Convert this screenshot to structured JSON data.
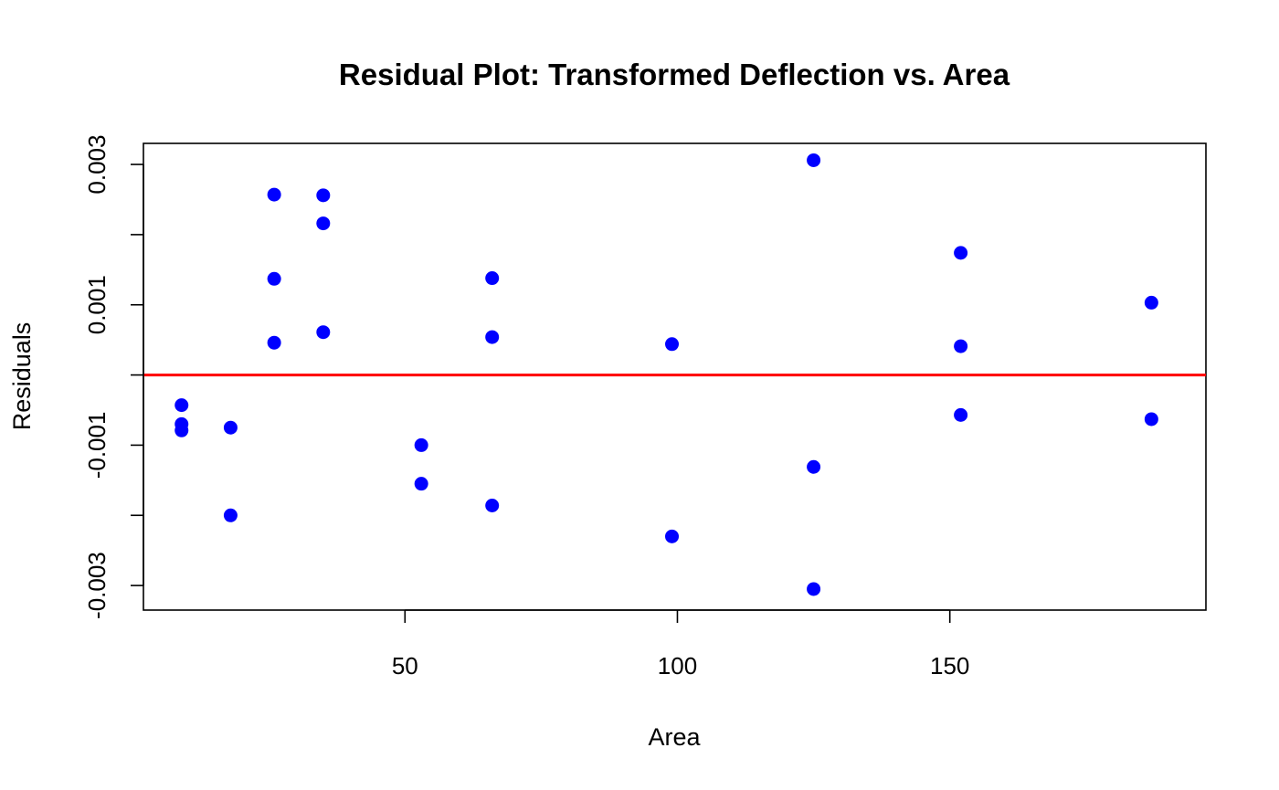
{
  "chart_data": {
    "type": "scatter",
    "title": "Residual Plot: Transformed Deflection vs. Area",
    "xlabel": "Area",
    "ylabel": "Residuals",
    "xlim": [
      2,
      197
    ],
    "ylim": [
      -0.00335,
      0.0033
    ],
    "x_ticks": [
      50,
      100,
      150
    ],
    "x_tick_labels": [
      "50",
      "100",
      "150"
    ],
    "y_ticks": [
      -0.003,
      -0.002,
      -0.001,
      0.0,
      0.001,
      0.002,
      0.003
    ],
    "y_tick_labels": [
      "-0.003",
      "",
      "-0.001",
      "",
      "0.001",
      "",
      "0.003"
    ],
    "grid": false,
    "reference_line": {
      "y": 0,
      "color": "#ff0000"
    },
    "point_color": "#0000ff",
    "x": [
      9,
      9,
      9,
      18,
      18,
      26,
      26,
      26,
      35,
      35,
      35,
      53,
      53,
      66,
      66,
      66,
      99,
      99,
      125,
      125,
      125,
      152,
      152,
      152,
      187,
      187
    ],
    "y": [
      -0.00043,
      -0.0007,
      -0.00079,
      -0.00075,
      -0.002,
      0.00257,
      0.00137,
      0.00046,
      0.00256,
      0.00216,
      0.00061,
      -0.001,
      -0.00155,
      0.00138,
      0.00054,
      -0.00186,
      0.00044,
      -0.0023,
      0.00306,
      -0.00131,
      -0.00305,
      0.00174,
      0.00041,
      -0.00057,
      0.00103,
      -0.00063
    ]
  }
}
